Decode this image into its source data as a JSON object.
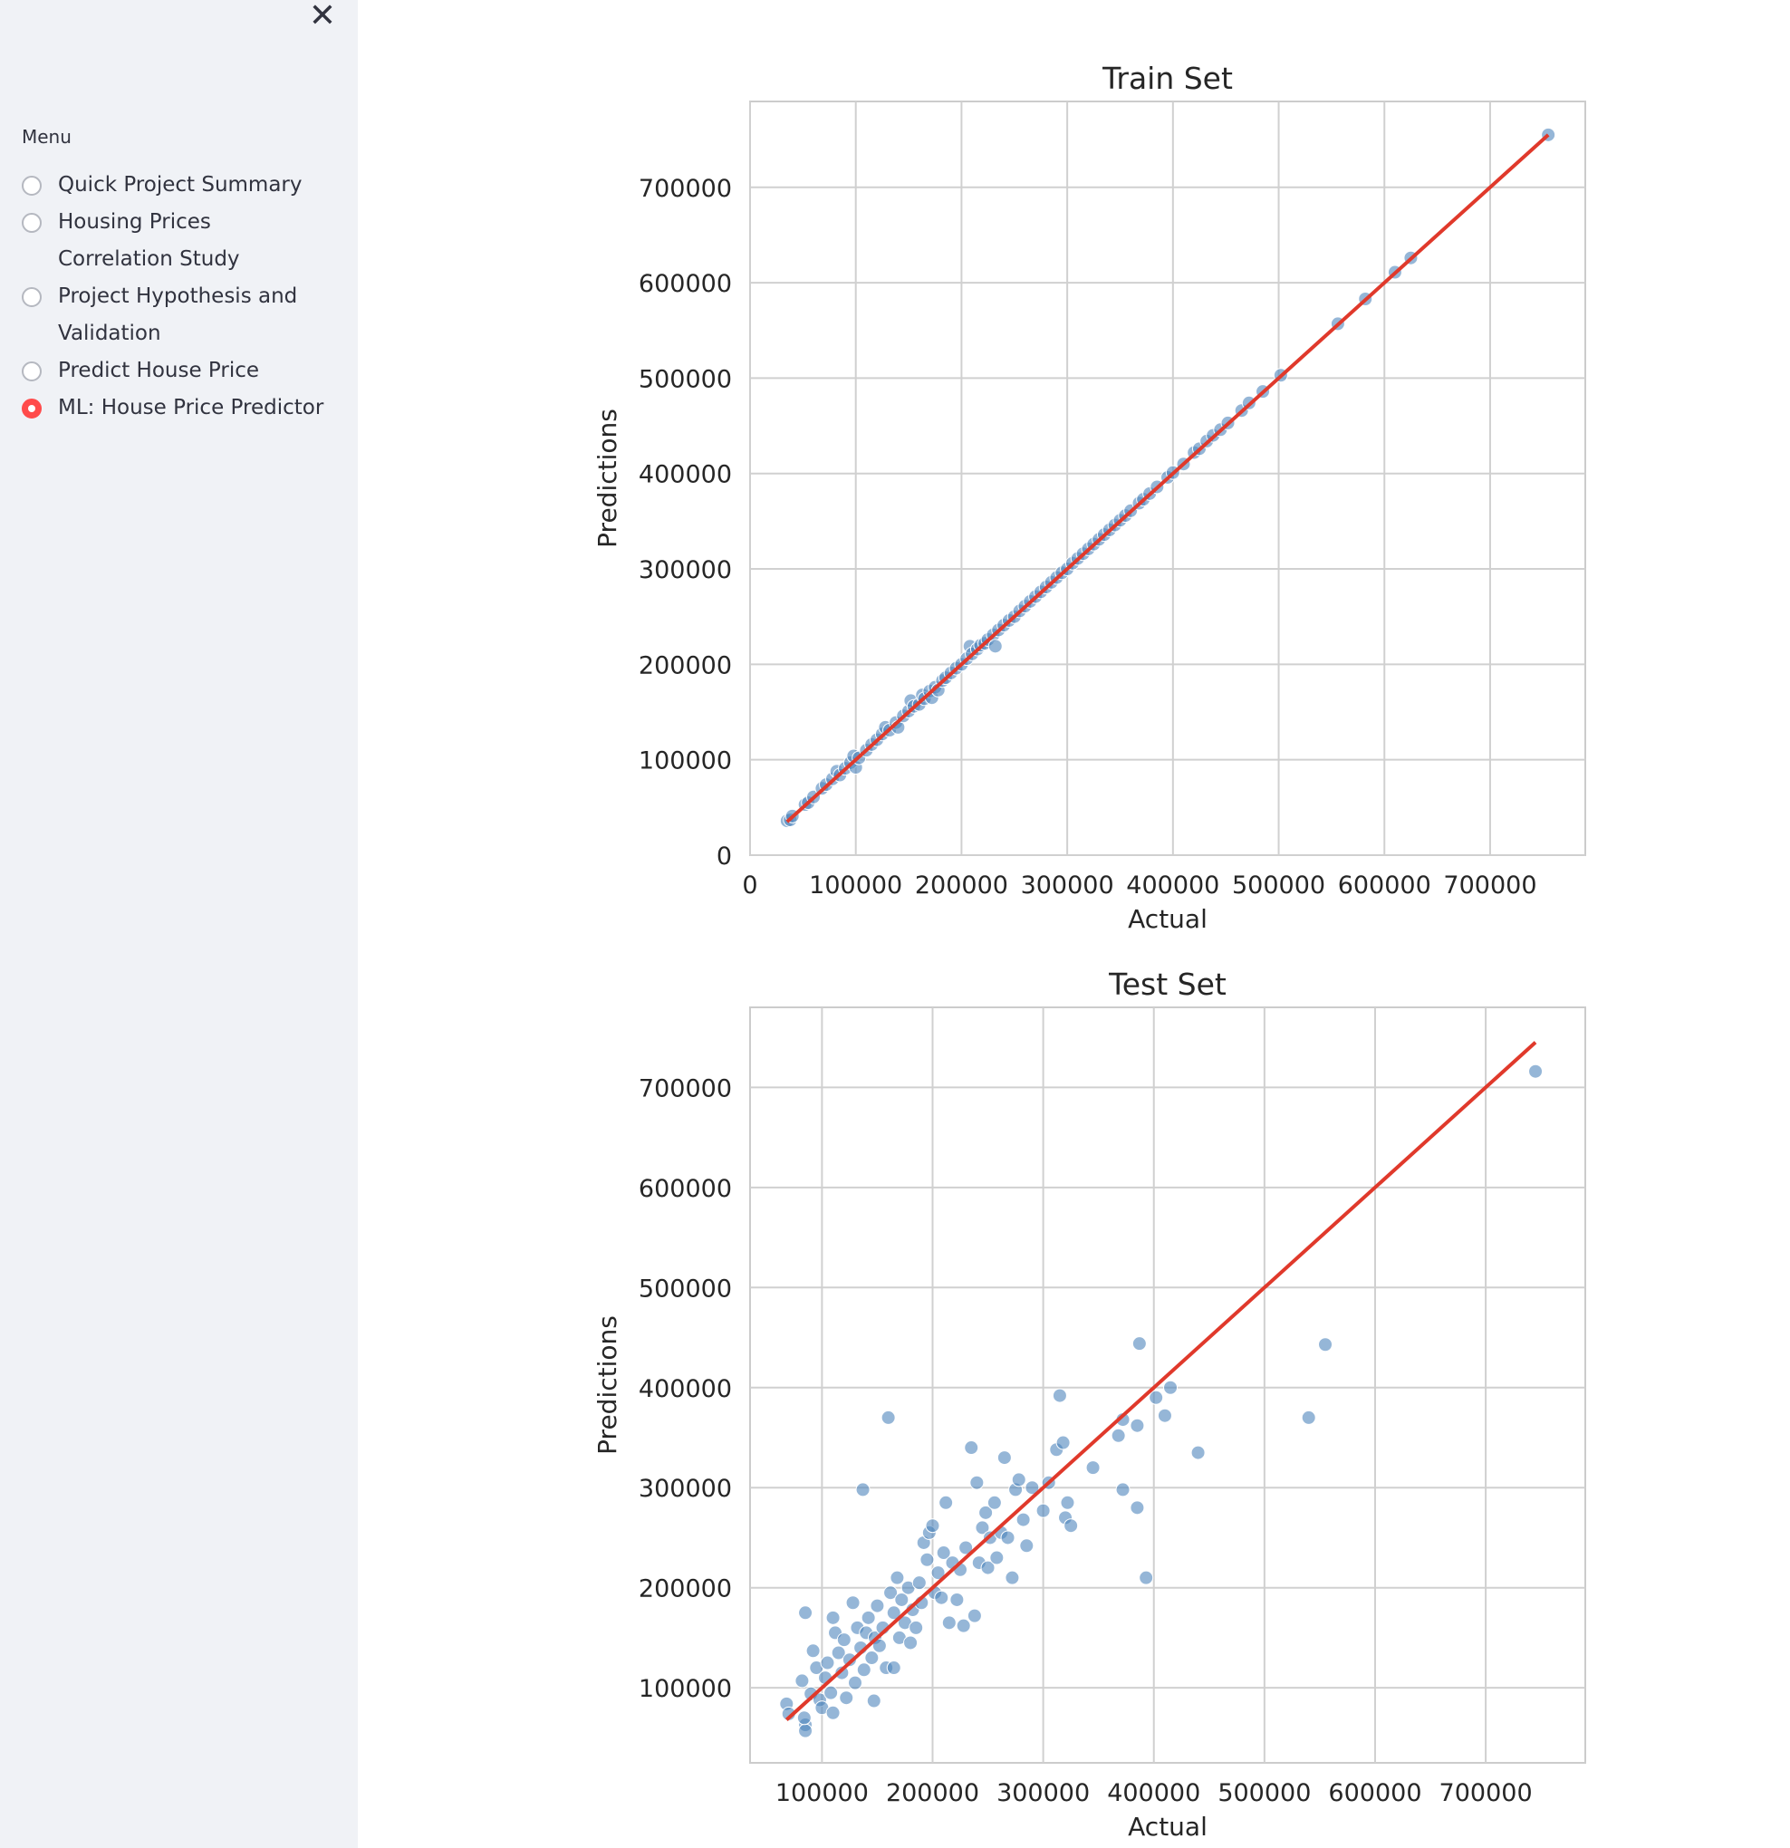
{
  "sidebar": {
    "close_icon": "close-icon",
    "menu_label": "Menu",
    "items": [
      {
        "label": "Quick Project Summary",
        "lines": [
          "Quick Project Summary"
        ],
        "selected": false
      },
      {
        "label": "Housing Prices Correlation Study",
        "lines": [
          "Housing Prices",
          "Correlation Study"
        ],
        "selected": false
      },
      {
        "label": "Project Hypothesis and Validation",
        "lines": [
          "Project Hypothesis and",
          "Validation"
        ],
        "selected": false
      },
      {
        "label": "Predict House Price",
        "lines": [
          "Predict House Price"
        ],
        "selected": false
      },
      {
        "label": "ML: House Price Predictor",
        "lines": [
          "ML: House Price Predictor"
        ],
        "selected": true
      }
    ],
    "accent_color": "#ff4b4b"
  },
  "chart_data": [
    {
      "type": "scatter",
      "title": "Train Set",
      "xlabel": "Actual",
      "ylabel": "Predictions",
      "xlim": [
        0,
        790000
      ],
      "ylim": [
        0,
        790000
      ],
      "xticks": [
        0,
        100000,
        200000,
        300000,
        400000,
        500000,
        600000,
        700000
      ],
      "yticks": [
        0,
        100000,
        200000,
        300000,
        400000,
        500000,
        600000,
        700000
      ],
      "grid": true,
      "point_color": "#4f86bd",
      "line_color": "#e0392b",
      "reference_line": {
        "x": [
          35000,
          755000
        ],
        "y": [
          35000,
          755000
        ]
      },
      "points": [
        [
          35000,
          36000
        ],
        [
          38000,
          37000
        ],
        [
          40000,
          41000
        ],
        [
          52000,
          53000
        ],
        [
          55000,
          55000
        ],
        [
          60000,
          61000
        ],
        [
          68000,
          70000
        ],
        [
          72000,
          74000
        ],
        [
          78000,
          80000
        ],
        [
          82000,
          88000
        ],
        [
          85000,
          84000
        ],
        [
          90000,
          91000
        ],
        [
          95000,
          97000
        ],
        [
          98000,
          104000
        ],
        [
          100000,
          92000
        ],
        [
          103000,
          102000
        ],
        [
          110000,
          110000
        ],
        [
          115000,
          116000
        ],
        [
          120000,
          121000
        ],
        [
          125000,
          127000
        ],
        [
          128000,
          134000
        ],
        [
          132000,
          131000
        ],
        [
          138000,
          139000
        ],
        [
          140000,
          134000
        ],
        [
          145000,
          146000
        ],
        [
          150000,
          151000
        ],
        [
          152000,
          162000
        ],
        [
          155000,
          156000
        ],
        [
          160000,
          158000
        ],
        [
          163000,
          168000
        ],
        [
          165000,
          164000
        ],
        [
          170000,
          172000
        ],
        [
          172000,
          165000
        ],
        [
          175000,
          176000
        ],
        [
          178000,
          173000
        ],
        [
          182000,
          183000
        ],
        [
          185000,
          186000
        ],
        [
          190000,
          191000
        ],
        [
          195000,
          196000
        ],
        [
          200000,
          200000
        ],
        [
          205000,
          206000
        ],
        [
          208000,
          219000
        ],
        [
          210000,
          211000
        ],
        [
          215000,
          216000
        ],
        [
          218000,
          220000
        ],
        [
          222000,
          222000
        ],
        [
          225000,
          226000
        ],
        [
          230000,
          231000
        ],
        [
          232000,
          219000
        ],
        [
          235000,
          236000
        ],
        [
          240000,
          241000
        ],
        [
          245000,
          246000
        ],
        [
          250000,
          250000
        ],
        [
          255000,
          256000
        ],
        [
          260000,
          261000
        ],
        [
          265000,
          266000
        ],
        [
          270000,
          271000
        ],
        [
          275000,
          276000
        ],
        [
          280000,
          281000
        ],
        [
          285000,
          286000
        ],
        [
          290000,
          291000
        ],
        [
          295000,
          296000
        ],
        [
          300000,
          300000
        ],
        [
          305000,
          306000
        ],
        [
          310000,
          311000
        ],
        [
          315000,
          316000
        ],
        [
          320000,
          321000
        ],
        [
          325000,
          326000
        ],
        [
          330000,
          331000
        ],
        [
          335000,
          336000
        ],
        [
          340000,
          341000
        ],
        [
          345000,
          346000
        ],
        [
          350000,
          351000
        ],
        [
          355000,
          356000
        ],
        [
          360000,
          361000
        ],
        [
          368000,
          369000
        ],
        [
          372000,
          373000
        ],
        [
          378000,
          379000
        ],
        [
          385000,
          386000
        ],
        [
          395000,
          396000
        ],
        [
          400000,
          401000
        ],
        [
          410000,
          410000
        ],
        [
          420000,
          422000
        ],
        [
          425000,
          426000
        ],
        [
          432000,
          434000
        ],
        [
          438000,
          440000
        ],
        [
          445000,
          446000
        ],
        [
          452000,
          453000
        ],
        [
          465000,
          466000
        ],
        [
          472000,
          474000
        ],
        [
          485000,
          486000
        ],
        [
          502000,
          503000
        ],
        [
          556000,
          557000
        ],
        [
          582000,
          583000
        ],
        [
          610000,
          611000
        ],
        [
          625000,
          626000
        ],
        [
          755000,
          755000
        ]
      ]
    },
    {
      "type": "scatter",
      "title": "Test Set",
      "xlabel": "Actual",
      "ylabel": "Predictions",
      "xlim": [
        35000,
        790000
      ],
      "ylim": [
        25000,
        780000
      ],
      "xticks": [
        100000,
        200000,
        300000,
        400000,
        500000,
        600000,
        700000
      ],
      "yticks": [
        100000,
        200000,
        300000,
        400000,
        500000,
        600000,
        700000
      ],
      "grid": true,
      "point_color": "#4f86bd",
      "line_color": "#e0392b",
      "reference_line": {
        "x": [
          68000,
          745000
        ],
        "y": [
          68000,
          745000
        ]
      },
      "points": [
        [
          68000,
          84000
        ],
        [
          70000,
          74000
        ],
        [
          85000,
          175000
        ],
        [
          82000,
          107000
        ],
        [
          85000,
          63000
        ],
        [
          85000,
          57000
        ],
        [
          84000,
          70000
        ],
        [
          90000,
          94000
        ],
        [
          92000,
          137000
        ],
        [
          95000,
          120000
        ],
        [
          98000,
          88000
        ],
        [
          100000,
          80000
        ],
        [
          103000,
          110000
        ],
        [
          105000,
          125000
        ],
        [
          108000,
          95000
        ],
        [
          110000,
          75000
        ],
        [
          110000,
          170000
        ],
        [
          112000,
          155000
        ],
        [
          115000,
          135000
        ],
        [
          118000,
          115000
        ],
        [
          120000,
          148000
        ],
        [
          122000,
          90000
        ],
        [
          125000,
          128000
        ],
        [
          128000,
          185000
        ],
        [
          130000,
          105000
        ],
        [
          132000,
          160000
        ],
        [
          135000,
          140000
        ],
        [
          137000,
          298000
        ],
        [
          138000,
          118000
        ],
        [
          140000,
          155000
        ],
        [
          142000,
          170000
        ],
        [
          145000,
          130000
        ],
        [
          147000,
          87000
        ],
        [
          148000,
          150000
        ],
        [
          150000,
          182000
        ],
        [
          152000,
          142000
        ],
        [
          155000,
          160000
        ],
        [
          158000,
          120000
        ],
        [
          160000,
          370000
        ],
        [
          162000,
          195000
        ],
        [
          165000,
          175000
        ],
        [
          165000,
          120000
        ],
        [
          168000,
          210000
        ],
        [
          170000,
          150000
        ],
        [
          172000,
          188000
        ],
        [
          175000,
          165000
        ],
        [
          178000,
          200000
        ],
        [
          180000,
          145000
        ],
        [
          182000,
          178000
        ],
        [
          185000,
          160000
        ],
        [
          188000,
          205000
        ],
        [
          190000,
          185000
        ],
        [
          192000,
          245000
        ],
        [
          195000,
          228000
        ],
        [
          197000,
          255000
        ],
        [
          200000,
          262000
        ],
        [
          202000,
          195000
        ],
        [
          205000,
          215000
        ],
        [
          208000,
          190000
        ],
        [
          210000,
          235000
        ],
        [
          212000,
          285000
        ],
        [
          215000,
          165000
        ],
        [
          218000,
          225000
        ],
        [
          222000,
          188000
        ],
        [
          225000,
          218000
        ],
        [
          228000,
          162000
        ],
        [
          230000,
          240000
        ],
        [
          235000,
          340000
        ],
        [
          238000,
          172000
        ],
        [
          240000,
          305000
        ],
        [
          242000,
          225000
        ],
        [
          245000,
          260000
        ],
        [
          248000,
          275000
        ],
        [
          250000,
          220000
        ],
        [
          252000,
          250000
        ],
        [
          256000,
          285000
        ],
        [
          258000,
          230000
        ],
        [
          262000,
          255000
        ],
        [
          265000,
          330000
        ],
        [
          268000,
          250000
        ],
        [
          272000,
          210000
        ],
        [
          275000,
          298000
        ],
        [
          278000,
          308000
        ],
        [
          282000,
          268000
        ],
        [
          285000,
          242000
        ],
        [
          290000,
          300000
        ],
        [
          300000,
          277000
        ],
        [
          305000,
          305000
        ],
        [
          312000,
          338000
        ],
        [
          315000,
          392000
        ],
        [
          318000,
          345000
        ],
        [
          320000,
          270000
        ],
        [
          322000,
          285000
        ],
        [
          325000,
          262000
        ],
        [
          345000,
          320000
        ],
        [
          368000,
          352000
        ],
        [
          372000,
          368000
        ],
        [
          372000,
          298000
        ],
        [
          385000,
          362000
        ],
        [
          385000,
          280000
        ],
        [
          387000,
          444000
        ],
        [
          393000,
          210000
        ],
        [
          402000,
          390000
        ],
        [
          410000,
          372000
        ],
        [
          415000,
          400000
        ],
        [
          440000,
          335000
        ],
        [
          540000,
          370000
        ],
        [
          555000,
          443000
        ],
        [
          745000,
          716000
        ]
      ]
    }
  ]
}
